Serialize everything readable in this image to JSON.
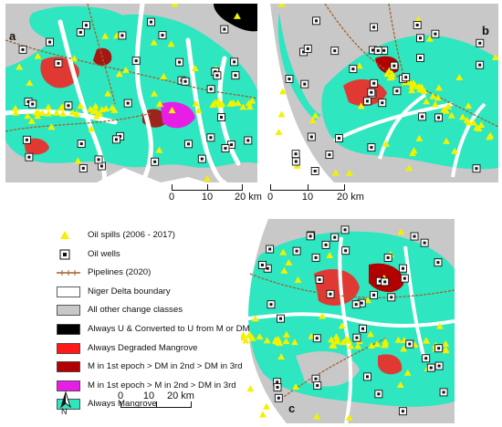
{
  "panels": {
    "a": {
      "label": "a",
      "scale": {
        "ticks": [
          "0",
          "10",
          "20 km"
        ]
      }
    },
    "b": {
      "label": "b",
      "scale": {
        "ticks": [
          "0",
          "10",
          "20 km"
        ]
      }
    },
    "c": {
      "label": "c",
      "scale": {
        "ticks": [
          "0",
          "10",
          "20 km"
        ]
      }
    }
  },
  "legend": {
    "items": [
      {
        "symbol": "triangle",
        "label": "Oil spills (2006 - 2017)",
        "color": "#f2f200"
      },
      {
        "symbol": "well",
        "label": "Oil wells",
        "color": "#111111"
      },
      {
        "symbol": "line",
        "label": "Pipelines (2020)",
        "color": "#a0622d"
      },
      {
        "symbol": "box",
        "label": "Niger Delta boundary",
        "color": "#ffffff"
      },
      {
        "symbol": "box",
        "label": "All other change classes",
        "color": "#c8c8c8"
      },
      {
        "symbol": "box",
        "label": "Always U & Converted to U from M or DM",
        "color": "#000000"
      },
      {
        "symbol": "box",
        "label": "Always Degraded Mangrove",
        "color": "#ff1a1a"
      },
      {
        "symbol": "box",
        "label": "M in 1st epoch > DM in 2nd > DM in 3rd",
        "color": "#b30000"
      },
      {
        "symbol": "box",
        "label": "M in 1st epoch > M in 2nd > DM in 3rd",
        "color": "#e61ee6"
      },
      {
        "symbol": "box",
        "label": "Always Mangrove",
        "color": "#2ee6c0"
      }
    ]
  },
  "north_arrow": {
    "label": "N"
  },
  "colors": {
    "mangrove": "#2ee6c0",
    "other": "#c8c8c8",
    "water": "#ffffff",
    "degraded": "#ff1a1a",
    "dm_dm": "#b30000",
    "m_dm": "#e61ee6",
    "urban": "#000000",
    "spill": "#f2f200",
    "well": "#111111",
    "pipeline": "#a0622d"
  }
}
